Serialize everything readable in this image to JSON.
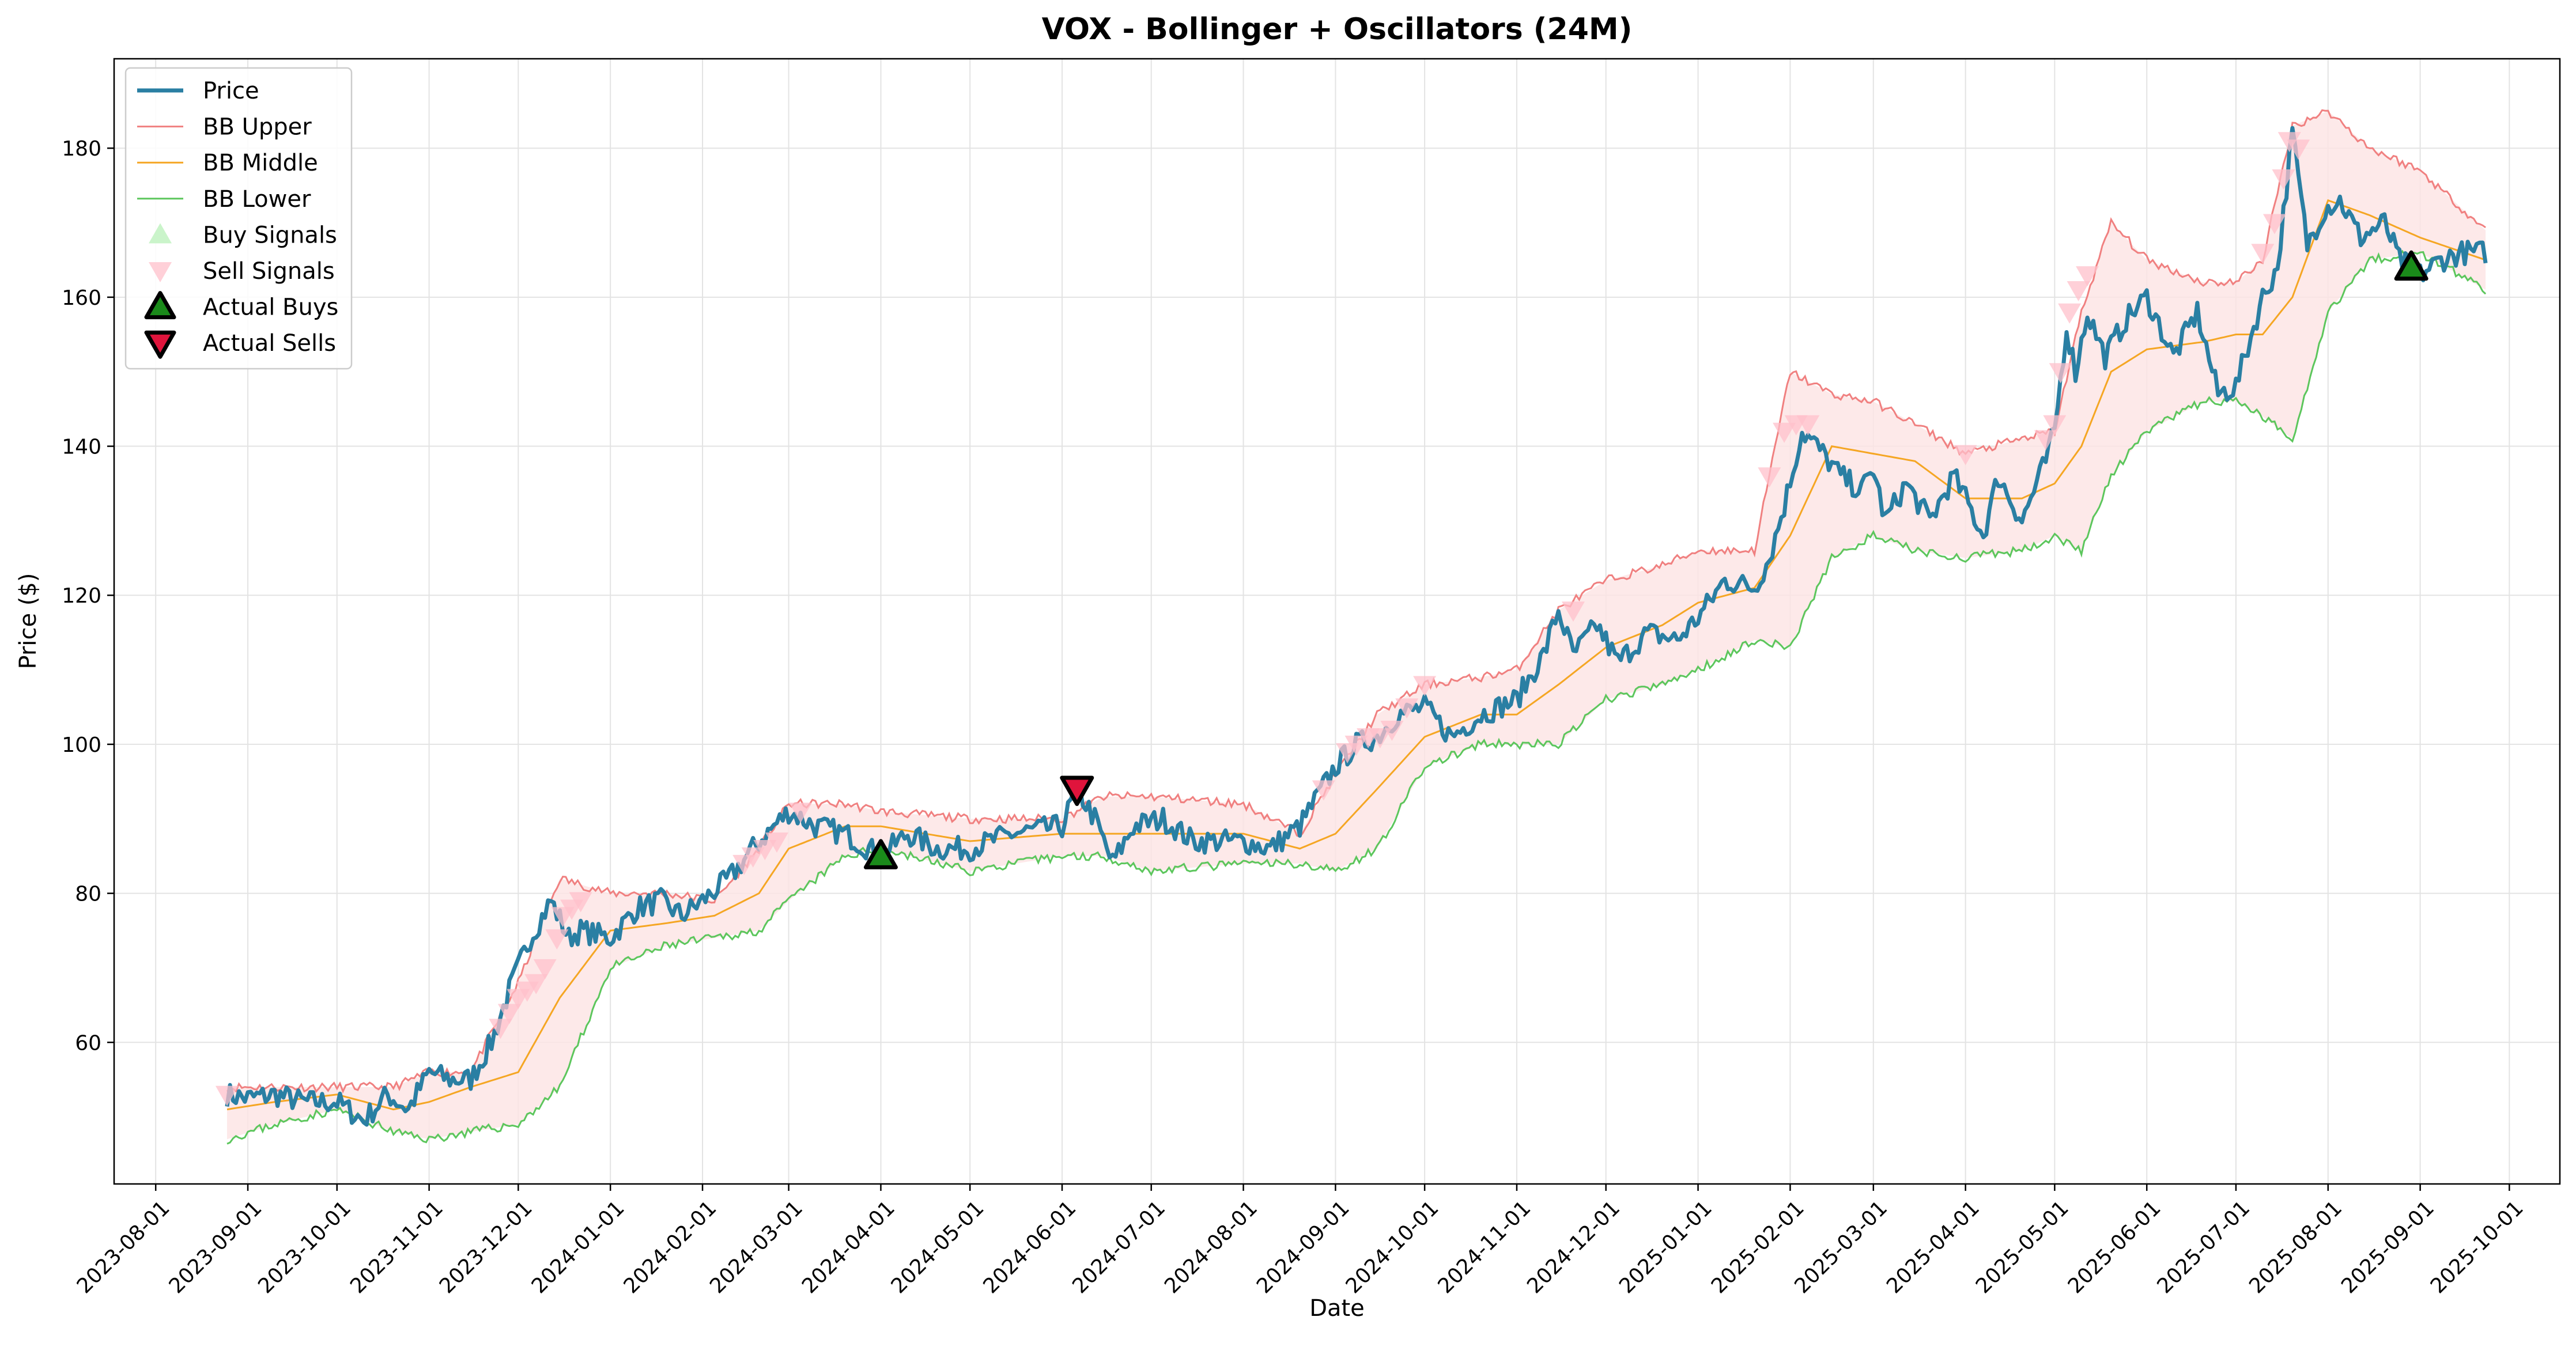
{
  "chart_data": {
    "type": "line",
    "title": "VOX - Bollinger + Oscillators (24M)",
    "xlabel": "Date",
    "ylabel": "Price ($)",
    "xlim": [
      "2023-07-18",
      "2025-10-18"
    ],
    "ylim": [
      41,
      192
    ],
    "grid": true,
    "legend_position": "top-left",
    "x_ticks": [
      "2023-08-01",
      "2023-09-01",
      "2023-10-01",
      "2023-11-01",
      "2023-12-01",
      "2024-01-01",
      "2024-02-01",
      "2024-03-01",
      "2024-04-01",
      "2024-05-01",
      "2024-06-01",
      "2024-07-01",
      "2024-08-01",
      "2024-09-01",
      "2024-10-01",
      "2024-11-01",
      "2024-12-01",
      "2025-01-01",
      "2025-02-01",
      "2025-03-01",
      "2025-04-01",
      "2025-05-01",
      "2025-06-01",
      "2025-07-01",
      "2025-08-01",
      "2025-09-01",
      "2025-10-01"
    ],
    "y_ticks": [
      60,
      80,
      100,
      120,
      140,
      160,
      180
    ],
    "colors": {
      "price": "#2a7fa3",
      "bb_upper": "#f08080",
      "bb_middle": "#f5a623",
      "bb_lower": "#5cc65c",
      "band_fill": "#fde3e3",
      "buy_signal": "#b8f0b8",
      "sell_signal": "#ffc0cb",
      "actual_buy": "#1a8a1a",
      "actual_sell": "#e0143c"
    },
    "legend": [
      "Price",
      "BB Upper",
      "BB Middle",
      "BB Lower",
      "Buy Signals",
      "Sell Signals",
      "Actual Buys",
      "Actual Sells"
    ],
    "series": [
      {
        "name": "Price",
        "x": [
          "2023-08-25",
          "2023-09-01",
          "2023-09-10",
          "2023-09-20",
          "2023-10-01",
          "2023-10-10",
          "2023-10-18",
          "2023-10-25",
          "2023-11-01",
          "2023-11-08",
          "2023-11-15",
          "2023-11-22",
          "2023-11-28",
          "2023-12-05",
          "2023-12-12",
          "2023-12-18",
          "2023-12-22",
          "2024-01-01",
          "2024-01-10",
          "2024-01-18",
          "2024-01-25",
          "2024-02-01",
          "2024-02-10",
          "2024-02-18",
          "2024-02-25",
          "2024-03-01",
          "2024-03-10",
          "2024-03-20",
          "2024-04-01",
          "2024-04-10",
          "2024-04-20",
          "2024-05-01",
          "2024-05-15",
          "2024-06-01",
          "2024-06-06",
          "2024-06-12",
          "2024-06-18",
          "2024-06-25",
          "2024-07-05",
          "2024-07-15",
          "2024-07-25",
          "2024-08-01",
          "2024-08-10",
          "2024-08-20",
          "2024-09-01",
          "2024-09-08",
          "2024-09-15",
          "2024-09-22",
          "2024-10-01",
          "2024-10-10",
          "2024-10-20",
          "2024-11-01",
          "2024-11-10",
          "2024-11-15",
          "2024-11-20",
          "2024-11-28",
          "2024-12-05",
          "2024-12-15",
          "2024-12-25",
          "2025-01-01",
          "2025-01-10",
          "2025-01-20",
          "2025-01-25",
          "2025-01-30",
          "2025-02-05",
          "2025-02-10",
          "2025-02-18",
          "2025-02-25",
          "2025-03-01",
          "2025-03-05",
          "2025-03-12",
          "2025-03-20",
          "2025-03-28",
          "2025-04-01",
          "2025-04-07",
          "2025-04-12",
          "2025-04-20",
          "2025-04-28",
          "2025-05-01",
          "2025-05-05",
          "2025-05-08",
          "2025-05-12",
          "2025-05-18",
          "2025-05-25",
          "2025-06-01",
          "2025-06-10",
          "2025-06-18",
          "2025-06-25",
          "2025-07-01",
          "2025-07-10",
          "2025-07-15",
          "2025-07-20",
          "2025-07-25",
          "2025-07-31",
          "2025-08-05",
          "2025-08-12",
          "2025-08-20",
          "2025-08-25",
          "2025-09-01",
          "2025-09-08",
          "2025-09-15",
          "2025-09-23"
        ],
        "values": [
          53,
          52.5,
          53,
          52,
          52,
          49.5,
          53,
          51,
          56,
          55,
          55,
          60,
          67,
          74,
          79,
          74,
          75,
          74,
          78,
          79,
          77,
          79,
          82,
          86,
          89,
          91,
          89,
          88,
          85,
          88,
          86,
          86,
          88,
          89,
          94,
          90,
          84,
          89,
          90,
          87,
          87,
          87,
          86,
          89,
          97,
          100,
          101,
          104,
          105,
          101,
          104,
          106,
          112,
          118,
          112,
          116,
          111,
          115,
          114,
          117,
          122,
          121,
          125,
          132,
          142,
          140,
          136,
          134,
          137,
          130,
          135,
          130,
          136,
          133,
          128,
          136,
          130,
          138,
          142,
          156,
          150,
          158,
          152,
          157,
          160,
          152,
          158,
          147,
          148,
          160,
          164,
          182,
          167,
          172,
          173,
          168,
          170,
          165,
          163,
          165,
          166,
          166
        ]
      },
      {
        "name": "BB Upper",
        "x": [
          "2023-08-25",
          "2023-09-10",
          "2023-10-01",
          "2023-10-20",
          "2023-11-01",
          "2023-11-15",
          "2023-12-01",
          "2023-12-15",
          "2024-01-01",
          "2024-01-20",
          "2024-02-05",
          "2024-02-20",
          "2024-03-01",
          "2024-03-20",
          "2024-04-01",
          "2024-05-01",
          "2024-06-01",
          "2024-06-15",
          "2024-07-01",
          "2024-08-01",
          "2024-08-20",
          "2024-09-01",
          "2024-09-15",
          "2024-10-01",
          "2024-10-20",
          "2024-11-01",
          "2024-11-15",
          "2024-12-01",
          "2024-12-20",
          "2025-01-01",
          "2025-01-20",
          "2025-02-01",
          "2025-02-15",
          "2025-03-01",
          "2025-03-15",
          "2025-04-01",
          "2025-04-20",
          "2025-05-01",
          "2025-05-10",
          "2025-05-20",
          "2025-06-01",
          "2025-06-20",
          "2025-07-01",
          "2025-07-10",
          "2025-07-20",
          "2025-08-01",
          "2025-08-15",
          "2025-09-01",
          "2025-09-23"
        ],
        "values": [
          54,
          54,
          54,
          54,
          56,
          56,
          68,
          82,
          80,
          80,
          79,
          86,
          92,
          92,
          91,
          90,
          90,
          93,
          93,
          92,
          88,
          96,
          104,
          108,
          109,
          110,
          118,
          122,
          124,
          126,
          126,
          150,
          147,
          146,
          143,
          139,
          141,
          142,
          158,
          170,
          165,
          162,
          162,
          165,
          183,
          185,
          180,
          177,
          169
        ]
      },
      {
        "name": "BB Middle",
        "x": [
          "2023-08-25",
          "2023-09-10",
          "2023-10-01",
          "2023-10-20",
          "2023-11-01",
          "2023-11-15",
          "2023-12-01",
          "2023-12-15",
          "2024-01-01",
          "2024-01-20",
          "2024-02-05",
          "2024-02-20",
          "2024-03-01",
          "2024-03-20",
          "2024-04-01",
          "2024-05-01",
          "2024-06-01",
          "2024-06-15",
          "2024-07-01",
          "2024-08-01",
          "2024-08-20",
          "2024-09-01",
          "2024-09-15",
          "2024-10-01",
          "2024-10-20",
          "2024-11-01",
          "2024-11-15",
          "2024-12-01",
          "2024-12-20",
          "2025-01-01",
          "2025-01-20",
          "2025-02-01",
          "2025-02-15",
          "2025-03-01",
          "2025-03-15",
          "2025-04-01",
          "2025-04-20",
          "2025-05-01",
          "2025-05-10",
          "2025-05-20",
          "2025-06-01",
          "2025-06-20",
          "2025-07-01",
          "2025-07-10",
          "2025-07-20",
          "2025-08-01",
          "2025-08-15",
          "2025-09-01",
          "2025-09-23"
        ],
        "values": [
          51,
          52,
          53,
          51,
          52,
          54,
          56,
          66,
          75,
          76,
          77,
          80,
          86,
          89,
          89,
          87,
          88,
          88,
          88,
          88,
          86,
          88,
          94,
          101,
          104,
          104,
          108,
          113,
          116,
          119,
          121,
          128,
          140,
          139,
          138,
          133,
          133,
          135,
          140,
          150,
          153,
          154,
          155,
          155,
          160,
          173,
          171,
          168,
          165
        ]
      },
      {
        "name": "BB Lower",
        "x": [
          "2023-08-25",
          "2023-09-10",
          "2023-10-01",
          "2023-10-20",
          "2023-11-01",
          "2023-11-15",
          "2023-12-01",
          "2023-12-15",
          "2024-01-01",
          "2024-01-20",
          "2024-02-05",
          "2024-02-20",
          "2024-03-01",
          "2024-03-20",
          "2024-04-01",
          "2024-05-01",
          "2024-06-01",
          "2024-06-15",
          "2024-07-01",
          "2024-08-01",
          "2024-08-20",
          "2024-09-01",
          "2024-09-15",
          "2024-10-01",
          "2024-10-20",
          "2024-11-01",
          "2024-11-15",
          "2024-12-01",
          "2024-12-20",
          "2025-01-01",
          "2025-01-20",
          "2025-02-01",
          "2025-02-15",
          "2025-03-01",
          "2025-03-15",
          "2025-04-01",
          "2025-04-20",
          "2025-05-01",
          "2025-05-10",
          "2025-05-20",
          "2025-06-01",
          "2025-06-20",
          "2025-07-01",
          "2025-07-10",
          "2025-07-20",
          "2025-08-01",
          "2025-08-15",
          "2025-09-01",
          "2025-09-23"
        ],
        "values": [
          47,
          49,
          51,
          48,
          47,
          48,
          49,
          54,
          70,
          73,
          74,
          75,
          79,
          85,
          86,
          83,
          85,
          85,
          83,
          84,
          84,
          83,
          86,
          97,
          100,
          100,
          100,
          106,
          108,
          110,
          114,
          113,
          125,
          128,
          126,
          125,
          126,
          128,
          126,
          136,
          142,
          146,
          146,
          144,
          141,
          158,
          165,
          166,
          161
        ]
      }
    ],
    "buy_signals": [],
    "sell_signals": [
      {
        "x": "2023-08-25",
        "y": 53
      },
      {
        "x": "2023-11-25",
        "y": 62
      },
      {
        "x": "2023-11-28",
        "y": 64
      },
      {
        "x": "2023-12-01",
        "y": 66
      },
      {
        "x": "2023-12-04",
        "y": 67
      },
      {
        "x": "2023-12-07",
        "y": 68
      },
      {
        "x": "2023-12-10",
        "y": 70
      },
      {
        "x": "2023-12-14",
        "y": 74
      },
      {
        "x": "2023-12-16",
        "y": 77
      },
      {
        "x": "2023-12-19",
        "y": 78
      },
      {
        "x": "2023-12-22",
        "y": 79
      },
      {
        "x": "2024-02-15",
        "y": 84
      },
      {
        "x": "2024-02-18",
        "y": 85
      },
      {
        "x": "2024-02-22",
        "y": 86
      },
      {
        "x": "2024-02-26",
        "y": 87
      },
      {
        "x": "2024-03-05",
        "y": 91
      },
      {
        "x": "2024-08-28",
        "y": 94
      },
      {
        "x": "2024-09-05",
        "y": 99
      },
      {
        "x": "2024-09-08",
        "y": 100
      },
      {
        "x": "2024-09-12",
        "y": 101
      },
      {
        "x": "2024-09-16",
        "y": 101
      },
      {
        "x": "2024-09-20",
        "y": 102
      },
      {
        "x": "2024-09-25",
        "y": 105
      },
      {
        "x": "2024-10-01",
        "y": 108
      },
      {
        "x": "2024-11-20",
        "y": 118
      },
      {
        "x": "2025-01-25",
        "y": 136
      },
      {
        "x": "2025-01-30",
        "y": 142
      },
      {
        "x": "2025-02-03",
        "y": 143
      },
      {
        "x": "2025-02-07",
        "y": 143
      },
      {
        "x": "2025-04-01",
        "y": 139
      },
      {
        "x": "2025-04-28",
        "y": 141
      },
      {
        "x": "2025-05-01",
        "y": 143
      },
      {
        "x": "2025-05-03",
        "y": 150
      },
      {
        "x": "2025-05-06",
        "y": 158
      },
      {
        "x": "2025-05-09",
        "y": 161
      },
      {
        "x": "2025-05-12",
        "y": 163
      },
      {
        "x": "2025-07-10",
        "y": 166
      },
      {
        "x": "2025-07-14",
        "y": 170
      },
      {
        "x": "2025-07-17",
        "y": 176
      },
      {
        "x": "2025-07-19",
        "y": 181
      },
      {
        "x": "2025-07-22",
        "y": 180
      }
    ],
    "actual_buys": [
      {
        "x": "2024-04-01",
        "y": 85
      },
      {
        "x": "2025-08-29",
        "y": 164
      }
    ],
    "actual_sells": [
      {
        "x": "2024-06-06",
        "y": 94
      }
    ]
  }
}
